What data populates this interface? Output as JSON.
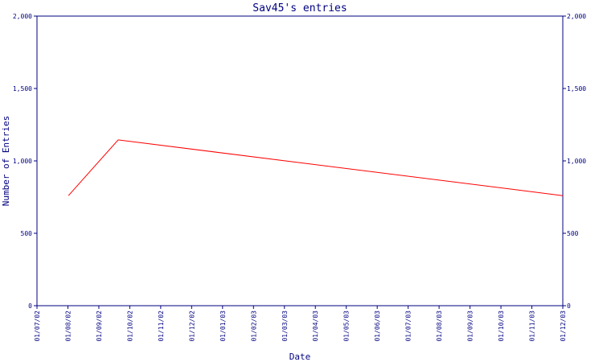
{
  "chart_data": {
    "type": "line",
    "title": "Sav45's entries",
    "xlabel": "Date",
    "ylabel": "Number of Entries",
    "x_tick_labels": [
      "01/07/02",
      "01/08/02",
      "01/09/02",
      "01/10/02",
      "01/11/02",
      "01/12/02",
      "01/01/03",
      "01/02/03",
      "01/03/03",
      "01/04/03",
      "01/05/03",
      "01/06/03",
      "01/07/03",
      "01/08/03",
      "01/09/03",
      "01/10/03",
      "01/11/03",
      "01/12/03"
    ],
    "y_ticks": [
      0,
      500,
      1000,
      1500,
      2000
    ],
    "y_tick_labels": [
      "0",
      "500",
      "1,000",
      "1,500",
      "2,000"
    ],
    "ylim": [
      0,
      2000
    ],
    "xlim": [
      "2002-07-01",
      "2003-12-01"
    ],
    "grid": false,
    "y_axis_mirrored_right": true,
    "series": [
      {
        "color": "#ff0000",
        "points": [
          {
            "x": "2002-08-01",
            "y": 760
          },
          {
            "x": "2002-09-19",
            "y": 1145
          },
          {
            "x": "2003-12-01",
            "y": 760
          }
        ]
      }
    ]
  }
}
